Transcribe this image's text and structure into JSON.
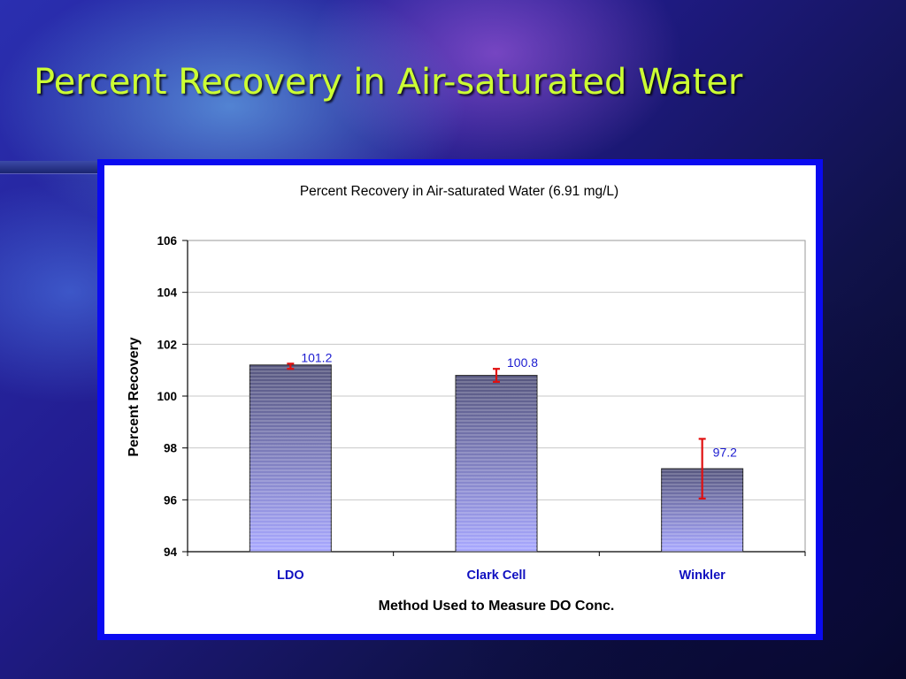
{
  "slide": {
    "title": "Percent Recovery in Air-saturated Water"
  },
  "colors": {
    "title": "#ccff33",
    "frame": "#0a0af0",
    "bar_top": "#56567e",
    "bar_bottom": "#a8a8ff",
    "error_bar": "#e01010",
    "category_label": "#1010c0",
    "data_label": "#1a1ad0"
  },
  "chart_data": {
    "type": "bar",
    "title": "Percent Recovery in Air-saturated Water (6.91 mg/L)",
    "xlabel": "Method Used to Measure DO Conc.",
    "ylabel": "Percent Recovery",
    "ylim": [
      94,
      106
    ],
    "yticks": [
      94,
      96,
      98,
      100,
      102,
      104,
      106
    ],
    "grid": true,
    "categories": [
      "LDO",
      "Clark Cell",
      "Winkler"
    ],
    "values": [
      101.2,
      100.8,
      97.2
    ],
    "data_labels": [
      "101.2",
      "100.8",
      "97.2"
    ],
    "error_bars": [
      {
        "low": 101.05,
        "high": 101.25
      },
      {
        "low": 100.55,
        "high": 101.05
      },
      {
        "low": 96.05,
        "high": 98.35
      }
    ]
  }
}
